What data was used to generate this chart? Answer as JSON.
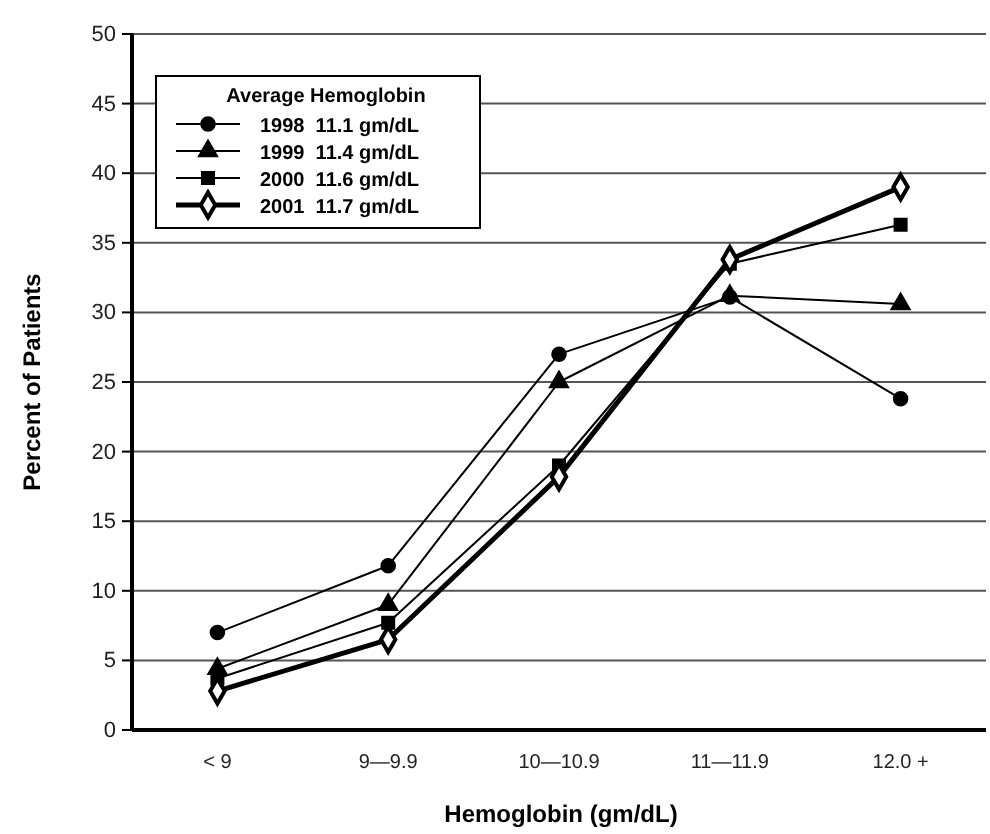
{
  "chart_data": {
    "type": "line",
    "xlabel": "Hemoglobin (gm/dL)",
    "ylabel": "Percent of Patients",
    "legend_title": "Average Hemoglobin",
    "legend": "top left",
    "grid": "y",
    "categories": [
      "< 9",
      "9—9.9",
      "10—10.9",
      "11—11.9",
      "12.0 +"
    ],
    "ylim": [
      0,
      50
    ],
    "yticks": [
      0,
      5,
      10,
      15,
      20,
      25,
      30,
      35,
      40,
      45,
      50
    ],
    "line_style": "solid",
    "series": [
      {
        "name": "1998  11.1 gm/dL",
        "color": "#000000",
        "marker": "circle",
        "values": [
          7,
          11.8,
          27,
          31.1,
          23.8
        ]
      },
      {
        "name": "1999  11.4 gm/dL",
        "color": "#000000",
        "marker": "triangle",
        "values": [
          4.4,
          9,
          25,
          31.2,
          30.6
        ]
      },
      {
        "name": "2000  11.6 gm/dL",
        "color": "#000000",
        "marker": "square",
        "values": [
          3.7,
          7.7,
          19,
          33.5,
          36.3
        ]
      },
      {
        "name": "2001  11.7 gm/dL",
        "color": "#000000",
        "marker": "diamond",
        "values": [
          2.8,
          6.5,
          18.2,
          33.8,
          39
        ]
      }
    ]
  }
}
